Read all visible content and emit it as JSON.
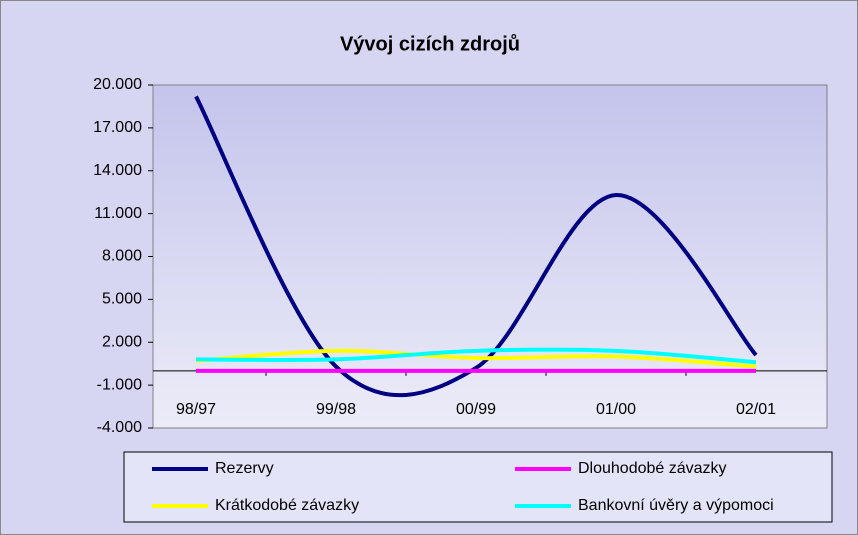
{
  "chart_data": {
    "type": "line",
    "title": "Vývoj cizích zdrojů",
    "categories": [
      "98/97",
      "99/98",
      "00/99",
      "01/00",
      "02/01"
    ],
    "series": [
      {
        "name": "Rezervy",
        "color": "#000080",
        "values": [
          19200,
          300,
          200,
          12300,
          1100
        ]
      },
      {
        "name": "Dlouhodobé závazky",
        "color": "#ff00ff",
        "values": [
          0,
          0,
          0,
          0,
          0
        ]
      },
      {
        "name": "Krátkodobé závazky",
        "color": "#ffff00",
        "values": [
          700,
          1400,
          900,
          1000,
          300
        ]
      },
      {
        "name": "Bankovní úvěry a výpomoci",
        "color": "#00ffff",
        "values": [
          800,
          800,
          1400,
          1400,
          600
        ]
      }
    ],
    "ylim": [
      -4000,
      20000
    ],
    "yticks": [
      {
        "value": -4000,
        "label": "-4.000"
      },
      {
        "value": -1000,
        "label": "-1.000"
      },
      {
        "value": 2000,
        "label": "2.000"
      },
      {
        "value": 5000,
        "label": "5.000"
      },
      {
        "value": 8000,
        "label": "8.000"
      },
      {
        "value": 11000,
        "label": "11.000"
      },
      {
        "value": 14000,
        "label": "14.000"
      },
      {
        "value": 17000,
        "label": "17.000"
      },
      {
        "value": 20000,
        "label": "20.000"
      }
    ],
    "smooth": true,
    "legend": "bottom"
  }
}
